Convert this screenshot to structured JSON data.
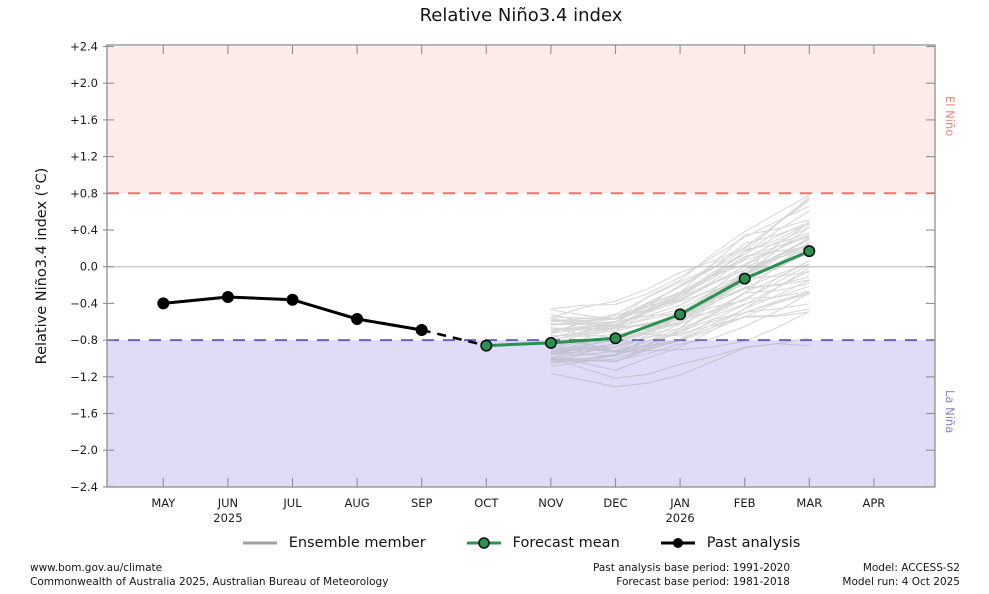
{
  "title": "Relative Niño3.4 index",
  "axes": {
    "y_label": "Relative Niño3.4 index (°C)",
    "y_tick_labels": [
      "+2.4",
      "+2.0",
      "+1.6",
      "+1.2",
      "+0.8",
      "+0.4",
      "0.0",
      "−0.4",
      "−0.8",
      "−1.2",
      "−1.6",
      "−2.0",
      "−2.4"
    ],
    "x_tick_labels": [
      "MAY",
      "JUN",
      "JUL",
      "AUG",
      "SEP",
      "OCT",
      "NOV",
      "DEC",
      "JAN",
      "FEB",
      "MAR",
      "APR"
    ],
    "year_labels": [
      {
        "under": "JUN",
        "text": "2025"
      },
      {
        "under": "JAN",
        "text": "2026"
      }
    ]
  },
  "chart_data": {
    "type": "line",
    "title": "Relative Niño3.4 index",
    "xlabel": "",
    "ylabel": "Relative Niño3.4 index (°C)",
    "ylim": [
      -2.4,
      2.4
    ],
    "ytick_step": 0.4,
    "grid": "zero-line-only",
    "categories": [
      "MAY",
      "JUN",
      "JUL",
      "AUG",
      "SEP",
      "OCT",
      "NOV",
      "DEC",
      "JAN",
      "FEB",
      "MAR",
      "APR"
    ],
    "series": [
      {
        "name": "Past analysis",
        "style": "line-markers",
        "color": "#000000",
        "months": [
          "MAY",
          "JUN",
          "JUL",
          "AUG",
          "SEP"
        ],
        "values": [
          -0.4,
          -0.33,
          -0.36,
          -0.57,
          -0.69
        ]
      },
      {
        "name": "Forecast mean",
        "style": "line-markers",
        "color": "#2a9150",
        "months": [
          "OCT",
          "NOV",
          "DEC",
          "JAN",
          "FEB",
          "MAR"
        ],
        "values": [
          -0.86,
          -0.83,
          -0.78,
          -0.52,
          -0.13,
          0.17
        ]
      },
      {
        "name": "Ensemble member",
        "style": "ensemble-fan",
        "color": "#a0a0a0",
        "opacity": 0.42,
        "months": [
          "NOV",
          "DEC",
          "JAN",
          "FEB",
          "MAR"
        ],
        "member_count": 60,
        "start_range": [
          -1.26,
          -0.46
        ],
        "end_range": [
          -0.8,
          1.0
        ],
        "mean_path": [
          -0.83,
          -0.78,
          -0.52,
          -0.13,
          0.17
        ]
      }
    ],
    "connector": {
      "from_month": "SEP",
      "from_value": -0.69,
      "to_month": "OCT",
      "to_value": -0.86,
      "style": "dashed",
      "color": "#000000"
    },
    "thresholds": [
      {
        "value": 0.8,
        "color": "#f4706a",
        "style": "dashed"
      },
      {
        "value": -0.8,
        "color": "#6565c0",
        "style": "dashed"
      }
    ],
    "regions": [
      {
        "from": 0.8,
        "to": 2.4,
        "fill": "#fcebe9",
        "label": "El Niño"
      },
      {
        "from": -2.4,
        "to": -0.8,
        "fill": "#dedcf6",
        "label": "La Niña"
      }
    ],
    "zero_line_color": "#c9c9c9",
    "frame_color": "#8f8f8f",
    "legend_position": "bottom-center"
  },
  "annotations": {
    "el_nino": {
      "text": "El Niño",
      "color": "#ee837d"
    },
    "la_nina": {
      "text": "La Niña",
      "color": "#8585c9"
    }
  },
  "legend": {
    "items": [
      {
        "label": "Ensemble member",
        "swatch": "gray-line"
      },
      {
        "label": "Forecast mean",
        "swatch": "green-line-dot"
      },
      {
        "label": "Past analysis",
        "swatch": "black-line-dot"
      }
    ]
  },
  "footer": {
    "left_line1": "www.bom.gov.au/climate",
    "left_line2": "Commonwealth of Australia 2025, Australian Bureau of Meteorology",
    "center_line1": "Past analysis base period: 1991-2020",
    "center_line2": "Forecast base period: 1981-2018",
    "right_line1": "Model: ACCESS-S2",
    "right_line2": "Model run: 4 Oct 2025"
  }
}
